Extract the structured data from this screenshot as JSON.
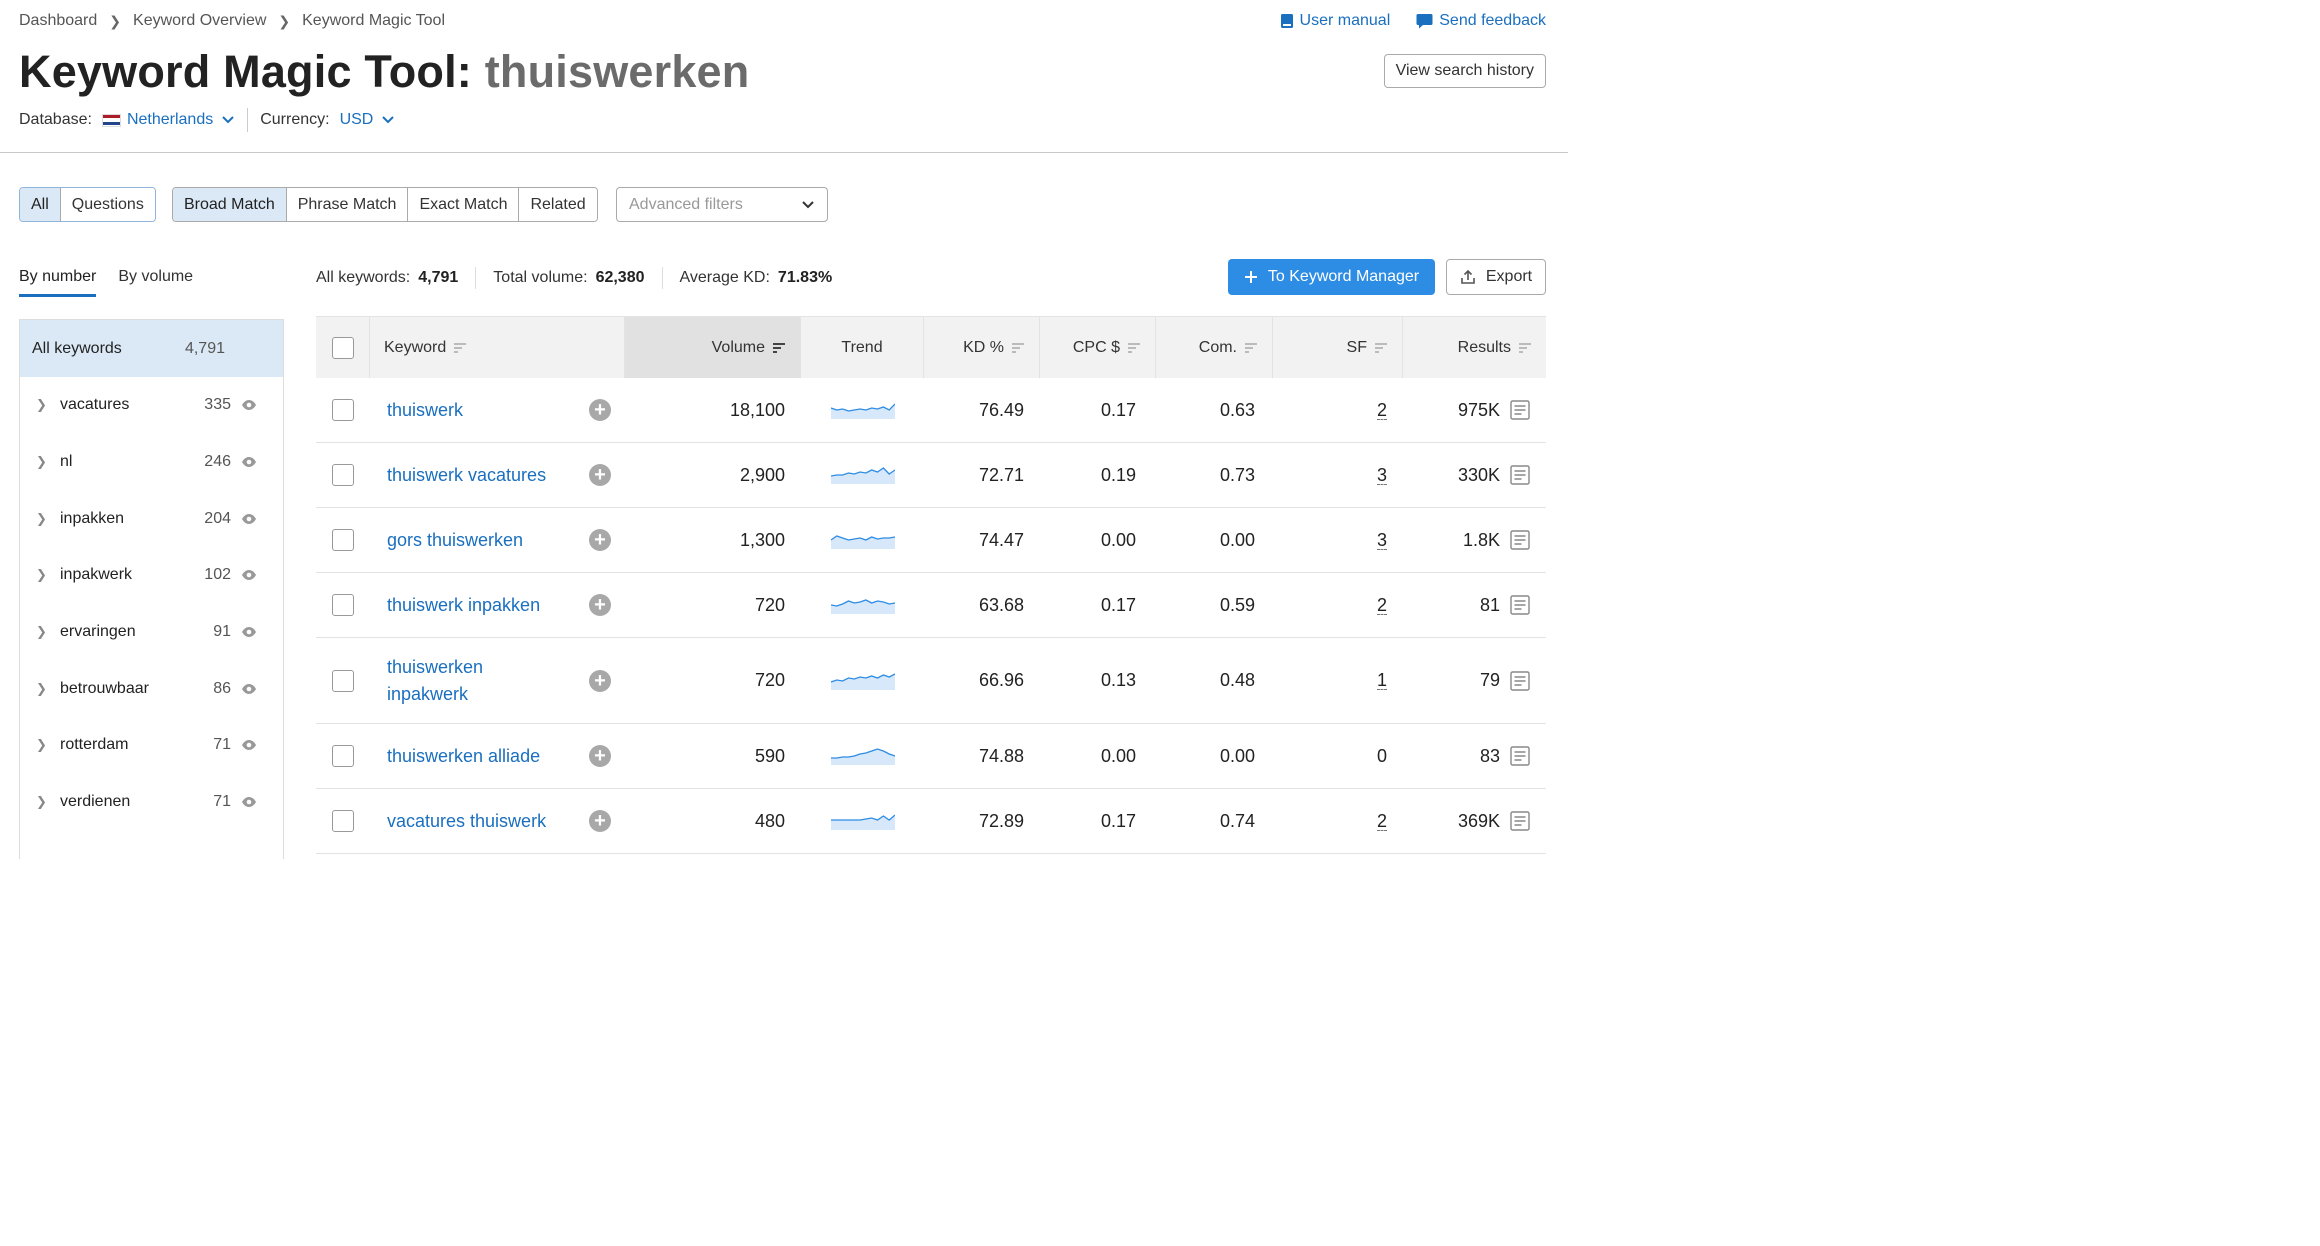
{
  "breadcrumb": [
    "Dashboard",
    "Keyword Overview",
    "Keyword Magic Tool"
  ],
  "top_links": {
    "user_manual": "User manual",
    "send_feedback": "Send feedback"
  },
  "title": {
    "prefix": "Keyword Magic Tool:",
    "query": "thuiswerken"
  },
  "view_history": "View search history",
  "database": {
    "label": "Database:",
    "value": "Netherlands"
  },
  "currency": {
    "label": "Currency:",
    "value": "USD"
  },
  "filters": {
    "scope": [
      "All",
      "Questions"
    ],
    "match": [
      "Broad Match",
      "Phrase Match",
      "Exact Match",
      "Related"
    ],
    "advanced_placeholder": "Advanced filters"
  },
  "tabs": [
    "By number",
    "By volume"
  ],
  "stats": {
    "all_keywords_label": "All keywords:",
    "all_keywords": "4,791",
    "total_volume_label": "Total volume:",
    "total_volume": "62,380",
    "avg_kd_label": "Average KD:",
    "avg_kd": "71.83%"
  },
  "buttons": {
    "to_keyword_manager": "To Keyword Manager",
    "export": "Export"
  },
  "sidebar": {
    "all_label": "All keywords",
    "all_count": "4,791",
    "items": [
      {
        "label": "vacatures",
        "count": "335"
      },
      {
        "label": "nl",
        "count": "246"
      },
      {
        "label": "inpakken",
        "count": "204"
      },
      {
        "label": "inpakwerk",
        "count": "102"
      },
      {
        "label": "ervaringen",
        "count": "91"
      },
      {
        "label": "betrouwbaar",
        "count": "86"
      },
      {
        "label": "rotterdam",
        "count": "71"
      },
      {
        "label": "verdienen",
        "count": "71"
      }
    ]
  },
  "table": {
    "headers": {
      "keyword": "Keyword",
      "volume": "Volume",
      "trend": "Trend",
      "kd": "KD %",
      "cpc": "CPC $",
      "com": "Com.",
      "sf": "SF",
      "results": "Results"
    },
    "rows": [
      {
        "keyword": "thuiswerk",
        "volume": "18,100",
        "kd": "76.49",
        "cpc": "0.17",
        "com": "0.63",
        "sf": "2",
        "results": "975K"
      },
      {
        "keyword": "thuiswerk vacatures",
        "volume": "2,900",
        "kd": "72.71",
        "cpc": "0.19",
        "com": "0.73",
        "sf": "3",
        "results": "330K"
      },
      {
        "keyword": "gors thuiswerken",
        "volume": "1,300",
        "kd": "74.47",
        "cpc": "0.00",
        "com": "0.00",
        "sf": "3",
        "results": "1.8K"
      },
      {
        "keyword": "thuiswerk inpakken",
        "volume": "720",
        "kd": "63.68",
        "cpc": "0.17",
        "com": "0.59",
        "sf": "2",
        "results": "81"
      },
      {
        "keyword": "thuiswerken inpakwerk",
        "volume": "720",
        "kd": "66.96",
        "cpc": "0.13",
        "com": "0.48",
        "sf": "1",
        "results": "79"
      },
      {
        "keyword": "thuiswerken alliade",
        "volume": "590",
        "kd": "74.88",
        "cpc": "0.00",
        "com": "0.00",
        "sf": "0",
        "results": "83"
      },
      {
        "keyword": "vacatures thuiswerk",
        "volume": "480",
        "kd": "72.89",
        "cpc": "0.17",
        "com": "0.74",
        "sf": "2",
        "results": "369K"
      }
    ]
  },
  "colors": {
    "link": "#1a6fbf",
    "primary_button": "#2d8ce3",
    "active_bg": "#dbe9f7",
    "trend_line": "#2d8ce3"
  },
  "icons": [
    "book-icon",
    "chat-icon",
    "chevron-down-icon",
    "plus-icon",
    "upload-icon",
    "eye-icon",
    "sort-icon",
    "serp-icon"
  ]
}
